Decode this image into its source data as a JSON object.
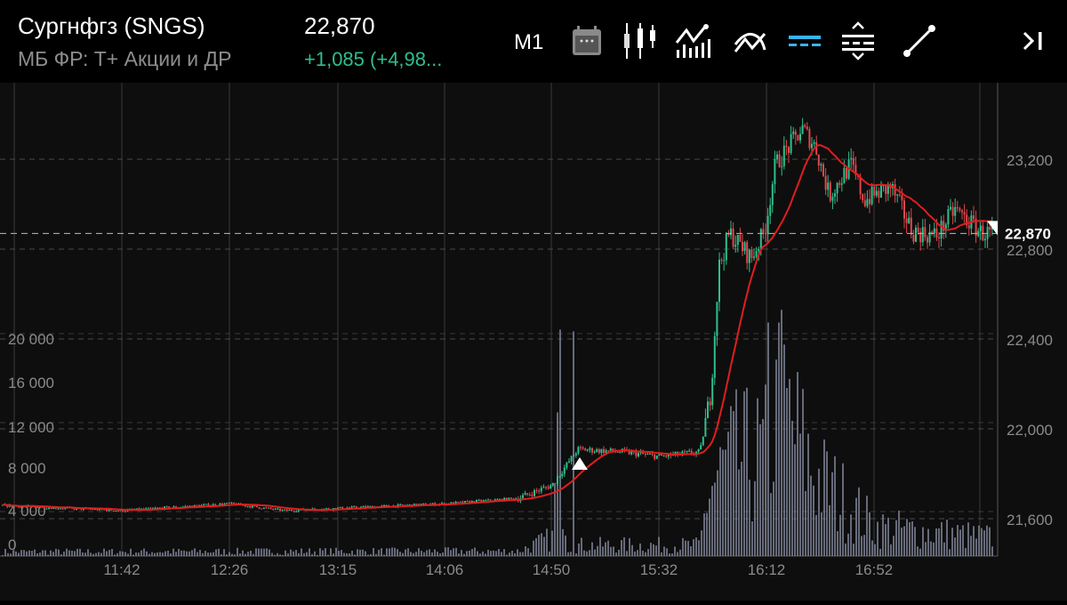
{
  "header": {
    "title": "Сургнфгз (SNGS)",
    "exchange": "МБ ФР: Т+ Акции и ДР",
    "price": "22,870",
    "change": "+1,085 (+4,98...",
    "timeframe": "M1",
    "icons": [
      "calendar-icon",
      "candlestick-icon",
      "indicators-icon",
      "compare-icon",
      "horizontal-lines-icon",
      "price-range-icon",
      "trend-line-icon",
      "scroll-to-end-icon"
    ]
  },
  "colors": {
    "up": "#2fbf8c",
    "down": "#e0474c",
    "ma": "#e01e1e",
    "volume": "#7d8296",
    "active_icon": "#3ab4e8",
    "change": "#2fbf8c"
  },
  "chart_data": {
    "type": "candlestick",
    "price_axis": {
      "ticks": [
        "23,200",
        "22,800",
        "22,400",
        "22,000",
        "21,600"
      ],
      "values": [
        23200,
        22800,
        22400,
        22000,
        21600
      ],
      "range": [
        21430,
        23560
      ],
      "last_price": 22870,
      "last_label": "22,870"
    },
    "volume_axis": {
      "ticks": [
        "20 000",
        "16 000",
        "12 000",
        "8 000",
        "4 000",
        "0"
      ],
      "values": [
        20000,
        16000,
        12000,
        8000,
        4000,
        0
      ]
    },
    "time_axis": {
      "ticks": [
        "11:42",
        "12:26",
        "13:15",
        "14:06",
        "14:50",
        "15:32",
        "16:12",
        "16:52"
      ]
    },
    "price_path": [
      [
        "11:00",
        21659
      ],
      [
        "11:42",
        21636
      ],
      [
        "12:26",
        21667
      ],
      [
        "12:50",
        21636
      ],
      [
        "14:06",
        21667
      ],
      [
        "14:36",
        21691
      ],
      [
        "14:50",
        21750
      ],
      [
        "15:00",
        21909
      ],
      [
        "15:18",
        21897
      ],
      [
        "15:32",
        21877
      ],
      [
        "15:47",
        21897
      ],
      [
        "15:51",
        22166
      ],
      [
        "15:54",
        22721
      ],
      [
        "15:58",
        22871
      ],
      [
        "16:06",
        22760
      ],
      [
        "16:11",
        22879
      ],
      [
        "16:15",
        23176
      ],
      [
        "16:25",
        23335
      ],
      [
        "16:30",
        23255
      ],
      [
        "16:35",
        23038
      ],
      [
        "16:43",
        23176
      ],
      [
        "16:48",
        23018
      ],
      [
        "16:58",
        23077
      ],
      [
        "17:06",
        22879
      ],
      [
        "17:15",
        22859
      ],
      [
        "17:22",
        22978
      ],
      [
        "17:32",
        22871
      ],
      [
        "17:37",
        22870
      ]
    ],
    "volume_profile": [
      [
        "11:00",
        600
      ],
      [
        "14:36",
        700
      ],
      [
        "14:50",
        2500
      ],
      [
        "14:53",
        20200
      ],
      [
        "14:56",
        1500
      ],
      [
        "15:47",
        1500
      ],
      [
        "15:50",
        9000
      ],
      [
        "15:58",
        13000
      ],
      [
        "16:12",
        14000
      ],
      [
        "16:17",
        21000
      ],
      [
        "16:30",
        11000
      ],
      [
        "16:52",
        4000
      ],
      [
        "17:37",
        2500
      ]
    ],
    "indicator": "moving average"
  }
}
